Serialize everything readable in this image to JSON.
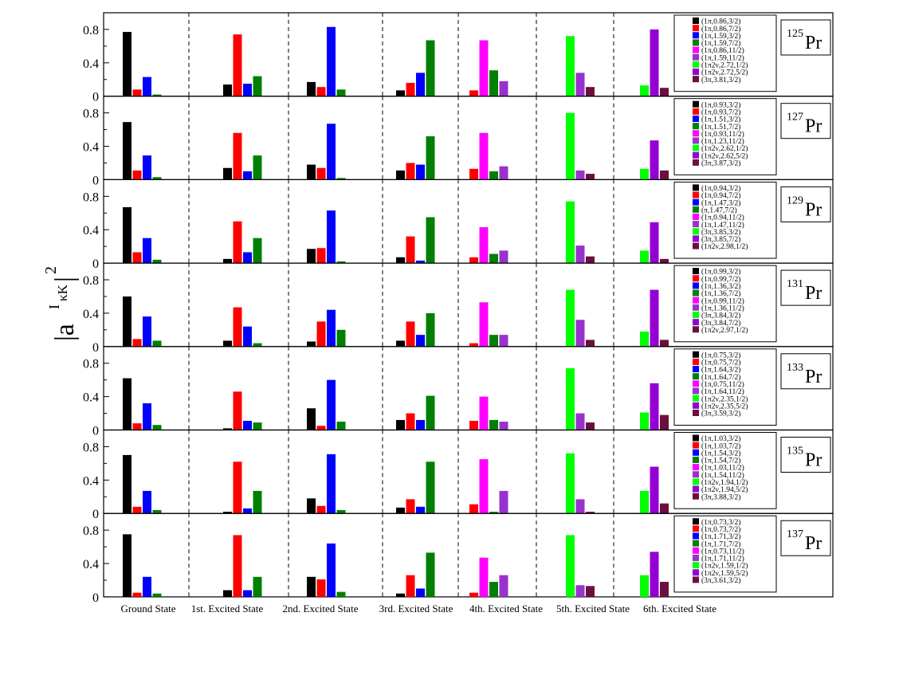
{
  "chart_data": {
    "type": "bar",
    "ylabel": "|a I κK|2",
    "ylabel_parts": {
      "base": "|a",
      "sup": "I",
      "sub": "κK",
      "close": "|",
      "power": "2"
    },
    "ylim": [
      0,
      1.0
    ],
    "y_ticks": [
      "0",
      "0.4",
      "0.8"
    ],
    "groups": [
      "Ground State",
      "1st. Excited State",
      "2nd. Excited State",
      "3rd. Excited State",
      "4th. Excited State",
      "5th. Excited State",
      "6th. Excited State"
    ],
    "colors": [
      "#000000",
      "#ff0000",
      "#0000ff",
      "#008000",
      "#ff00ff",
      "#9932cc",
      "#00ff00",
      "#9400d3",
      "#6b0f3e"
    ],
    "panels": [
      {
        "nucleus_mass": "125",
        "nucleus_symbol": "Pr",
        "legend": [
          "(1π,0.86,3/2)",
          "(1π,0.86,7/2)",
          "(1π,1.59,3/2)",
          "(1π,1.59,7/2)",
          "(1π,0.86,11/2)",
          "(1π,1.59,11/2)",
          "(1π2ν,2.72,1/2)",
          "(1π2ν,2.72,5/2)",
          "(3π,3.81,3/2)"
        ],
        "bars": [
          [
            {
              "c": 0,
              "v": 0.77
            },
            {
              "c": 1,
              "v": 0.08
            },
            {
              "c": 2,
              "v": 0.23
            },
            {
              "c": 3,
              "v": 0.02
            }
          ],
          [
            {
              "c": 0,
              "v": 0.14
            },
            {
              "c": 1,
              "v": 0.74
            },
            {
              "c": 2,
              "v": 0.15
            },
            {
              "c": 3,
              "v": 0.24
            }
          ],
          [
            {
              "c": 0,
              "v": 0.17
            },
            {
              "c": 1,
              "v": 0.11
            },
            {
              "c": 2,
              "v": 0.83
            },
            {
              "c": 3,
              "v": 0.08
            }
          ],
          [
            {
              "c": 0,
              "v": 0.07
            },
            {
              "c": 1,
              "v": 0.16
            },
            {
              "c": 2,
              "v": 0.28
            },
            {
              "c": 3,
              "v": 0.67
            }
          ],
          [
            {
              "c": 1,
              "v": 0.07
            },
            {
              "c": 4,
              "v": 0.67
            },
            {
              "c": 3,
              "v": 0.31
            },
            {
              "c": 5,
              "v": 0.18
            }
          ],
          [
            {
              "c": 6,
              "v": 0.72
            },
            {
              "c": 5,
              "v": 0.28
            },
            {
              "c": 8,
              "v": 0.11
            }
          ],
          [
            {
              "c": 6,
              "v": 0.13
            },
            {
              "c": 7,
              "v": 0.8
            },
            {
              "c": 8,
              "v": 0.1
            }
          ]
        ]
      },
      {
        "nucleus_mass": "127",
        "nucleus_symbol": "Pr",
        "legend": [
          "(1π,0.93,3/2)",
          "(1π,0.93,7/2)",
          "(1π,1.51,3/2)",
          "(1π,1.51,7/2)",
          "(1π,0.93,11/2)",
          "(1π,1.23,11/2)",
          "(1π2ν,2.62,1/2)",
          "(1π2ν,2.62,5/2)",
          "(3π,3.87,3/2)"
        ],
        "bars": [
          [
            {
              "c": 0,
              "v": 0.69
            },
            {
              "c": 1,
              "v": 0.11
            },
            {
              "c": 2,
              "v": 0.29
            },
            {
              "c": 3,
              "v": 0.03
            }
          ],
          [
            {
              "c": 0,
              "v": 0.14
            },
            {
              "c": 1,
              "v": 0.56
            },
            {
              "c": 2,
              "v": 0.1
            },
            {
              "c": 3,
              "v": 0.29
            }
          ],
          [
            {
              "c": 0,
              "v": 0.18
            },
            {
              "c": 1,
              "v": 0.14
            },
            {
              "c": 2,
              "v": 0.67
            },
            {
              "c": 3,
              "v": 0.02
            }
          ],
          [
            {
              "c": 0,
              "v": 0.11
            },
            {
              "c": 1,
              "v": 0.2
            },
            {
              "c": 2,
              "v": 0.18
            },
            {
              "c": 3,
              "v": 0.52
            }
          ],
          [
            {
              "c": 1,
              "v": 0.13
            },
            {
              "c": 4,
              "v": 0.56
            },
            {
              "c": 3,
              "v": 0.1
            },
            {
              "c": 5,
              "v": 0.16
            }
          ],
          [
            {
              "c": 6,
              "v": 0.8
            },
            {
              "c": 5,
              "v": 0.11
            },
            {
              "c": 8,
              "v": 0.07
            }
          ],
          [
            {
              "c": 6,
              "v": 0.13
            },
            {
              "c": 7,
              "v": 0.47
            },
            {
              "c": 8,
              "v": 0.11
            }
          ]
        ]
      },
      {
        "nucleus_mass": "129",
        "nucleus_symbol": "Pr",
        "legend": [
          "(1π,0.94,3/2)",
          "(1π,0.94,7/2)",
          "(1π,1.47,3/2)",
          "(π,1.47,7/2)",
          "(1π,0.94,11/2)",
          "(1π,1.47,11/2)",
          "(3π,3.85,3/2)",
          "(3π,3.85,7/2)",
          "(1π2ν,2.98,1/2)"
        ],
        "bars": [
          [
            {
              "c": 0,
              "v": 0.67
            },
            {
              "c": 1,
              "v": 0.13
            },
            {
              "c": 2,
              "v": 0.3
            },
            {
              "c": 3,
              "v": 0.04
            }
          ],
          [
            {
              "c": 0,
              "v": 0.05
            },
            {
              "c": 1,
              "v": 0.5
            },
            {
              "c": 2,
              "v": 0.13
            },
            {
              "c": 3,
              "v": 0.3
            }
          ],
          [
            {
              "c": 0,
              "v": 0.17
            },
            {
              "c": 1,
              "v": 0.18
            },
            {
              "c": 2,
              "v": 0.63
            },
            {
              "c": 3,
              "v": 0.02
            }
          ],
          [
            {
              "c": 0,
              "v": 0.07
            },
            {
              "c": 1,
              "v": 0.32
            },
            {
              "c": 2,
              "v": 0.03
            },
            {
              "c": 3,
              "v": 0.55
            }
          ],
          [
            {
              "c": 1,
              "v": 0.07
            },
            {
              "c": 4,
              "v": 0.43
            },
            {
              "c": 3,
              "v": 0.11
            },
            {
              "c": 5,
              "v": 0.15
            }
          ],
          [
            {
              "c": 6,
              "v": 0.74
            },
            {
              "c": 5,
              "v": 0.21
            },
            {
              "c": 8,
              "v": 0.08
            }
          ],
          [
            {
              "c": 6,
              "v": 0.15
            },
            {
              "c": 7,
              "v": 0.49
            },
            {
              "c": 8,
              "v": 0.05
            }
          ]
        ]
      },
      {
        "nucleus_mass": "131",
        "nucleus_symbol": "Pr",
        "legend": [
          "(1π,0.99,3/2)",
          "(1π,0.99,7/2)",
          "(1π,1.36,3/2)",
          "(1π,1.36,7/2)",
          "(1π,0.99,11/2)",
          "(1π,1.36,11/2)",
          "(3π,3.84,3/2)",
          "(3π,3.84,7/2)",
          "(1π2ν,2.97,1/2)"
        ],
        "bars": [
          [
            {
              "c": 0,
              "v": 0.6
            },
            {
              "c": 1,
              "v": 0.09
            },
            {
              "c": 2,
              "v": 0.36
            },
            {
              "c": 3,
              "v": 0.07
            }
          ],
          [
            {
              "c": 0,
              "v": 0.07
            },
            {
              "c": 1,
              "v": 0.47
            },
            {
              "c": 2,
              "v": 0.24
            },
            {
              "c": 3,
              "v": 0.04
            }
          ],
          [
            {
              "c": 0,
              "v": 0.06
            },
            {
              "c": 1,
              "v": 0.3
            },
            {
              "c": 2,
              "v": 0.44
            },
            {
              "c": 3,
              "v": 0.2
            }
          ],
          [
            {
              "c": 0,
              "v": 0.07
            },
            {
              "c": 1,
              "v": 0.3
            },
            {
              "c": 2,
              "v": 0.14
            },
            {
              "c": 3,
              "v": 0.4
            }
          ],
          [
            {
              "c": 1,
              "v": 0.04
            },
            {
              "c": 4,
              "v": 0.53
            },
            {
              "c": 3,
              "v": 0.14
            },
            {
              "c": 5,
              "v": 0.14
            }
          ],
          [
            {
              "c": 6,
              "v": 0.68
            },
            {
              "c": 5,
              "v": 0.32
            },
            {
              "c": 8,
              "v": 0.08
            }
          ],
          [
            {
              "c": 6,
              "v": 0.18
            },
            {
              "c": 7,
              "v": 0.68
            },
            {
              "c": 8,
              "v": 0.08
            }
          ]
        ]
      },
      {
        "nucleus_mass": "133",
        "nucleus_symbol": "Pr",
        "legend": [
          "(1π,0.75,3/2)",
          "(1π,0.75,7/2)",
          "(1π,1.64,3/2)",
          "(1π,1.64,7/2)",
          "(1π,0.75,11/2)",
          "(1π,1.64,11/2)",
          "(1π2ν,2.35,1/2)",
          "(1π2ν,2.35,5/2)",
          "(3π,3.59,3/2)"
        ],
        "bars": [
          [
            {
              "c": 0,
              "v": 0.62
            },
            {
              "c": 1,
              "v": 0.08
            },
            {
              "c": 2,
              "v": 0.32
            },
            {
              "c": 3,
              "v": 0.06
            }
          ],
          [
            {
              "c": 0,
              "v": 0.02
            },
            {
              "c": 1,
              "v": 0.46
            },
            {
              "c": 2,
              "v": 0.11
            },
            {
              "c": 3,
              "v": 0.09
            }
          ],
          [
            {
              "c": 0,
              "v": 0.26
            },
            {
              "c": 1,
              "v": 0.05
            },
            {
              "c": 2,
              "v": 0.6
            },
            {
              "c": 3,
              "v": 0.1
            }
          ],
          [
            {
              "c": 0,
              "v": 0.12
            },
            {
              "c": 1,
              "v": 0.2
            },
            {
              "c": 2,
              "v": 0.12
            },
            {
              "c": 3,
              "v": 0.41
            }
          ],
          [
            {
              "c": 1,
              "v": 0.11
            },
            {
              "c": 4,
              "v": 0.4
            },
            {
              "c": 3,
              "v": 0.12
            },
            {
              "c": 5,
              "v": 0.1
            }
          ],
          [
            {
              "c": 6,
              "v": 0.74
            },
            {
              "c": 5,
              "v": 0.2
            },
            {
              "c": 8,
              "v": 0.09
            }
          ],
          [
            {
              "c": 6,
              "v": 0.21
            },
            {
              "c": 7,
              "v": 0.56
            },
            {
              "c": 8,
              "v": 0.18
            }
          ]
        ]
      },
      {
        "nucleus_mass": "135",
        "nucleus_symbol": "Pr",
        "legend": [
          "(1π,1.03,3/2)",
          "(1π,1.03,7/2)",
          "(1π,1.54,3/2)",
          "(1π,1.54,7/2)",
          "(1π,1.03,11/2)",
          "(1π,1.54,11/2)",
          "(1π2ν,1.94,1/2)",
          "(1π2ν,1.94,5/2)",
          "(3π,3.88,3/2)"
        ],
        "bars": [
          [
            {
              "c": 0,
              "v": 0.7
            },
            {
              "c": 1,
              "v": 0.08
            },
            {
              "c": 2,
              "v": 0.27
            },
            {
              "c": 3,
              "v": 0.04
            }
          ],
          [
            {
              "c": 0,
              "v": 0.02
            },
            {
              "c": 1,
              "v": 0.62
            },
            {
              "c": 2,
              "v": 0.06
            },
            {
              "c": 3,
              "v": 0.27
            }
          ],
          [
            {
              "c": 0,
              "v": 0.18
            },
            {
              "c": 1,
              "v": 0.09
            },
            {
              "c": 2,
              "v": 0.71
            },
            {
              "c": 3,
              "v": 0.04
            }
          ],
          [
            {
              "c": 0,
              "v": 0.07
            },
            {
              "c": 1,
              "v": 0.17
            },
            {
              "c": 2,
              "v": 0.08
            },
            {
              "c": 3,
              "v": 0.62
            }
          ],
          [
            {
              "c": 1,
              "v": 0.11
            },
            {
              "c": 4,
              "v": 0.65
            },
            {
              "c": 3,
              "v": 0.02
            },
            {
              "c": 5,
              "v": 0.27
            }
          ],
          [
            {
              "c": 6,
              "v": 0.72
            },
            {
              "c": 5,
              "v": 0.17
            },
            {
              "c": 8,
              "v": 0.02
            }
          ],
          [
            {
              "c": 6,
              "v": 0.27
            },
            {
              "c": 7,
              "v": 0.56
            },
            {
              "c": 8,
              "v": 0.12
            }
          ]
        ]
      },
      {
        "nucleus_mass": "137",
        "nucleus_symbol": "Pr",
        "legend": [
          "(1π,0.73,3/2)",
          "(1π,0.73,7/2)",
          "(1π,1.71,3/2)",
          "(1π,1.71,7/2)",
          "(1π,0.73,11/2)",
          "(1π,1.71,11/2)",
          "(1π2ν,1.59,1/2)",
          "(1π2ν,1.59,5/2)",
          "(3π,3.61,3/2)"
        ],
        "bars": [
          [
            {
              "c": 0,
              "v": 0.75
            },
            {
              "c": 1,
              "v": 0.05
            },
            {
              "c": 2,
              "v": 0.24
            },
            {
              "c": 3,
              "v": 0.04
            }
          ],
          [
            {
              "c": 0,
              "v": 0.08
            },
            {
              "c": 1,
              "v": 0.74
            },
            {
              "c": 2,
              "v": 0.08
            },
            {
              "c": 3,
              "v": 0.24
            }
          ],
          [
            {
              "c": 0,
              "v": 0.24
            },
            {
              "c": 1,
              "v": 0.21
            },
            {
              "c": 2,
              "v": 0.64
            },
            {
              "c": 3,
              "v": 0.06
            }
          ],
          [
            {
              "c": 0,
              "v": 0.04
            },
            {
              "c": 1,
              "v": 0.26
            },
            {
              "c": 2,
              "v": 0.1
            },
            {
              "c": 3,
              "v": 0.53
            }
          ],
          [
            {
              "c": 1,
              "v": 0.05
            },
            {
              "c": 4,
              "v": 0.47
            },
            {
              "c": 3,
              "v": 0.18
            },
            {
              "c": 5,
              "v": 0.26
            }
          ],
          [
            {
              "c": 6,
              "v": 0.74
            },
            {
              "c": 5,
              "v": 0.14
            },
            {
              "c": 8,
              "v": 0.13
            }
          ],
          [
            {
              "c": 6,
              "v": 0.26
            },
            {
              "c": 7,
              "v": 0.54
            },
            {
              "c": 8,
              "v": 0.18
            }
          ]
        ]
      }
    ]
  }
}
